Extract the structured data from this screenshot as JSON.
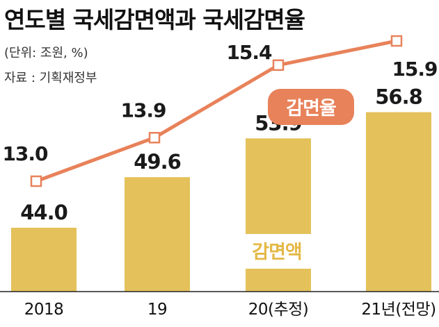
{
  "title": "연도별 국세감면액과 국세감면율",
  "unit": "(단위: 조원, %)",
  "source": "자료 : 기획재정부",
  "colors": {
    "bar": "#e4c15a",
    "line": "#e8825a",
    "legend_bar_text": "#e4b846",
    "legend_line_bg": "#e8825a"
  },
  "chart_data": {
    "type": "bar",
    "categories": [
      "2018",
      "19",
      "20(추정)",
      "21년(전망)"
    ],
    "series": [
      {
        "name": "감면액",
        "type": "bar",
        "values": [
          44.0,
          49.6,
          53.9,
          56.8
        ]
      },
      {
        "name": "감면율",
        "type": "line",
        "values": [
          13.0,
          13.9,
          15.4,
          15.9
        ]
      }
    ],
    "bar_labels": [
      "44.0",
      "49.6",
      "53.9",
      "56.8"
    ],
    "line_labels": [
      "13.0",
      "13.9",
      "15.4",
      "15.9"
    ]
  }
}
